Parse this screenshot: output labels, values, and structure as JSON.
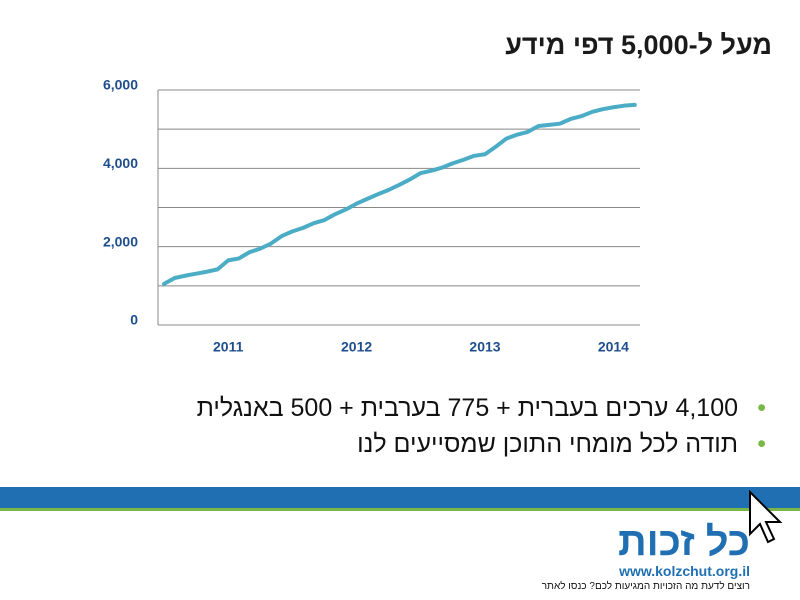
{
  "title": "מעל ל-5,000 דפי מידע",
  "chart_data": {
    "type": "line",
    "categories": [
      null,
      null,
      null,
      null,
      null,
      null,
      "2011",
      null,
      null,
      null,
      null,
      null,
      null,
      null,
      null,
      null,
      null,
      null,
      "2012",
      null,
      null,
      null,
      null,
      null,
      null,
      null,
      null,
      null,
      null,
      null,
      "2013",
      null,
      null,
      null,
      null,
      null,
      null,
      null,
      null,
      null,
      null,
      null,
      "2014",
      null,
      null
    ],
    "series": [
      {
        "color": "#4bacc6",
        "values": [
          1050,
          1200,
          1260,
          1310,
          1360,
          1420,
          1650,
          1700,
          1860,
          1950,
          2080,
          2270,
          2390,
          2480,
          2600,
          2680,
          2830,
          2950,
          3100,
          3220,
          3340,
          3450,
          3580,
          3720,
          3880,
          3940,
          4020,
          4130,
          4220,
          4320,
          4360,
          4550,
          4760,
          4860,
          4930,
          5080,
          5110,
          5140,
          5260,
          5330,
          5440,
          5510,
          5560,
          5600,
          5620
        ]
      }
    ],
    "ylim": [
      0,
      6000
    ],
    "yticks": [
      0,
      {
        "value": 2000,
        "label": "2,000"
      },
      {
        "value": 4000,
        "label": "4,000"
      },
      {
        "value": 6000,
        "label": "6,000"
      }
    ],
    "minor_yticks": [
      1000,
      3000,
      5000
    ],
    "grid": true
  },
  "bullets": [
    "4,100 ערכים בעברית + 775 בערבית + 500 באנגלית",
    "תודה לכל מומחי התוכן שמסייעים לנו"
  ],
  "footer": {
    "logo": "כל זכות",
    "url": "www.kolzchut.org.il",
    "tagline": "רוצים לדעת מה הזכויות המגיעות לכם? כנסו לאתר"
  }
}
